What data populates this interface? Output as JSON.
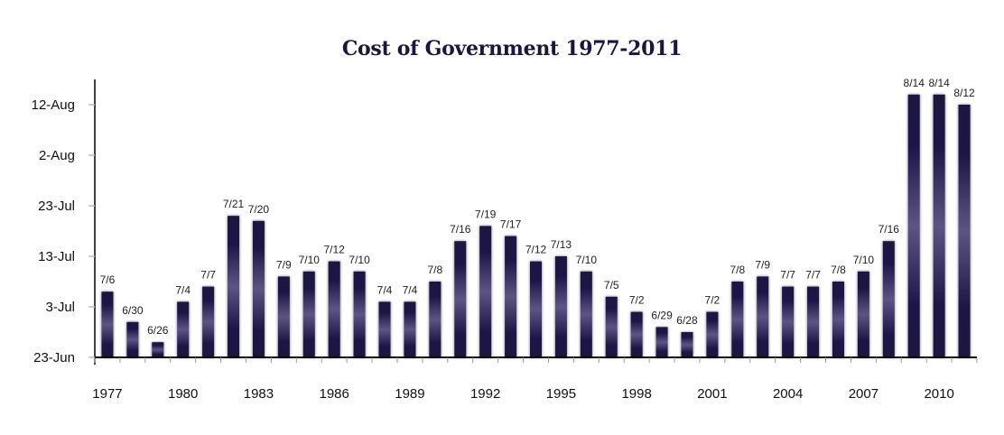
{
  "chart_data": {
    "type": "bar",
    "title": "Cost of Government 1977-2011",
    "xlabel": "",
    "ylabel": "",
    "base_date": "23-Jun",
    "y_unit": "days after 23-Jun",
    "ylim": [
      0,
      55
    ],
    "y_ticks": [
      {
        "label": "23-Jun",
        "value": 0
      },
      {
        "label": "3-Jul",
        "value": 10
      },
      {
        "label": "13-Jul",
        "value": 20
      },
      {
        "label": "23-Jul",
        "value": 30
      },
      {
        "label": "2-Aug",
        "value": 40
      },
      {
        "label": "12-Aug",
        "value": 50
      }
    ],
    "x_tick_labels": [
      "1977",
      "1980",
      "1983",
      "1986",
      "1989",
      "1992",
      "1995",
      "1998",
      "2001",
      "2004",
      "2007",
      "2010"
    ],
    "categories": [
      "1977",
      "1978",
      "1979",
      "1980",
      "1981",
      "1982",
      "1983",
      "1984",
      "1985",
      "1986",
      "1987",
      "1988",
      "1989",
      "1990",
      "1991",
      "1992",
      "1993",
      "1994",
      "1995",
      "1996",
      "1997",
      "1998",
      "1999",
      "2000",
      "2001",
      "2002",
      "2003",
      "2004",
      "2005",
      "2006",
      "2007",
      "2008",
      "2009",
      "2010",
      "2011"
    ],
    "data_labels": [
      "7/6",
      "6/30",
      "6/26",
      "7/4",
      "7/7",
      "7/21",
      "7/20",
      "7/9",
      "7/10",
      "7/12",
      "7/10",
      "7/4",
      "7/4",
      "7/8",
      "7/16",
      "7/19",
      "7/17",
      "7/12",
      "7/13",
      "7/10",
      "7/5",
      "7/2",
      "6/29",
      "6/28",
      "7/2",
      "7/8",
      "7/9",
      "7/7",
      "7/7",
      "7/8",
      "7/10",
      "7/16",
      "8/14",
      "8/14",
      "8/12"
    ],
    "values": [
      13,
      7,
      3,
      11,
      14,
      28,
      27,
      16,
      17,
      19,
      17,
      11,
      11,
      15,
      23,
      26,
      24,
      19,
      20,
      17,
      12,
      9,
      6,
      5,
      9,
      15,
      16,
      14,
      14,
      15,
      17,
      23,
      52,
      52,
      50
    ],
    "grid": false,
    "legend": "none",
    "colors": {
      "bar_dark": "#1a1240",
      "bar_light": "#5e5484",
      "axis": "#000000",
      "title": "#1a1640"
    }
  }
}
